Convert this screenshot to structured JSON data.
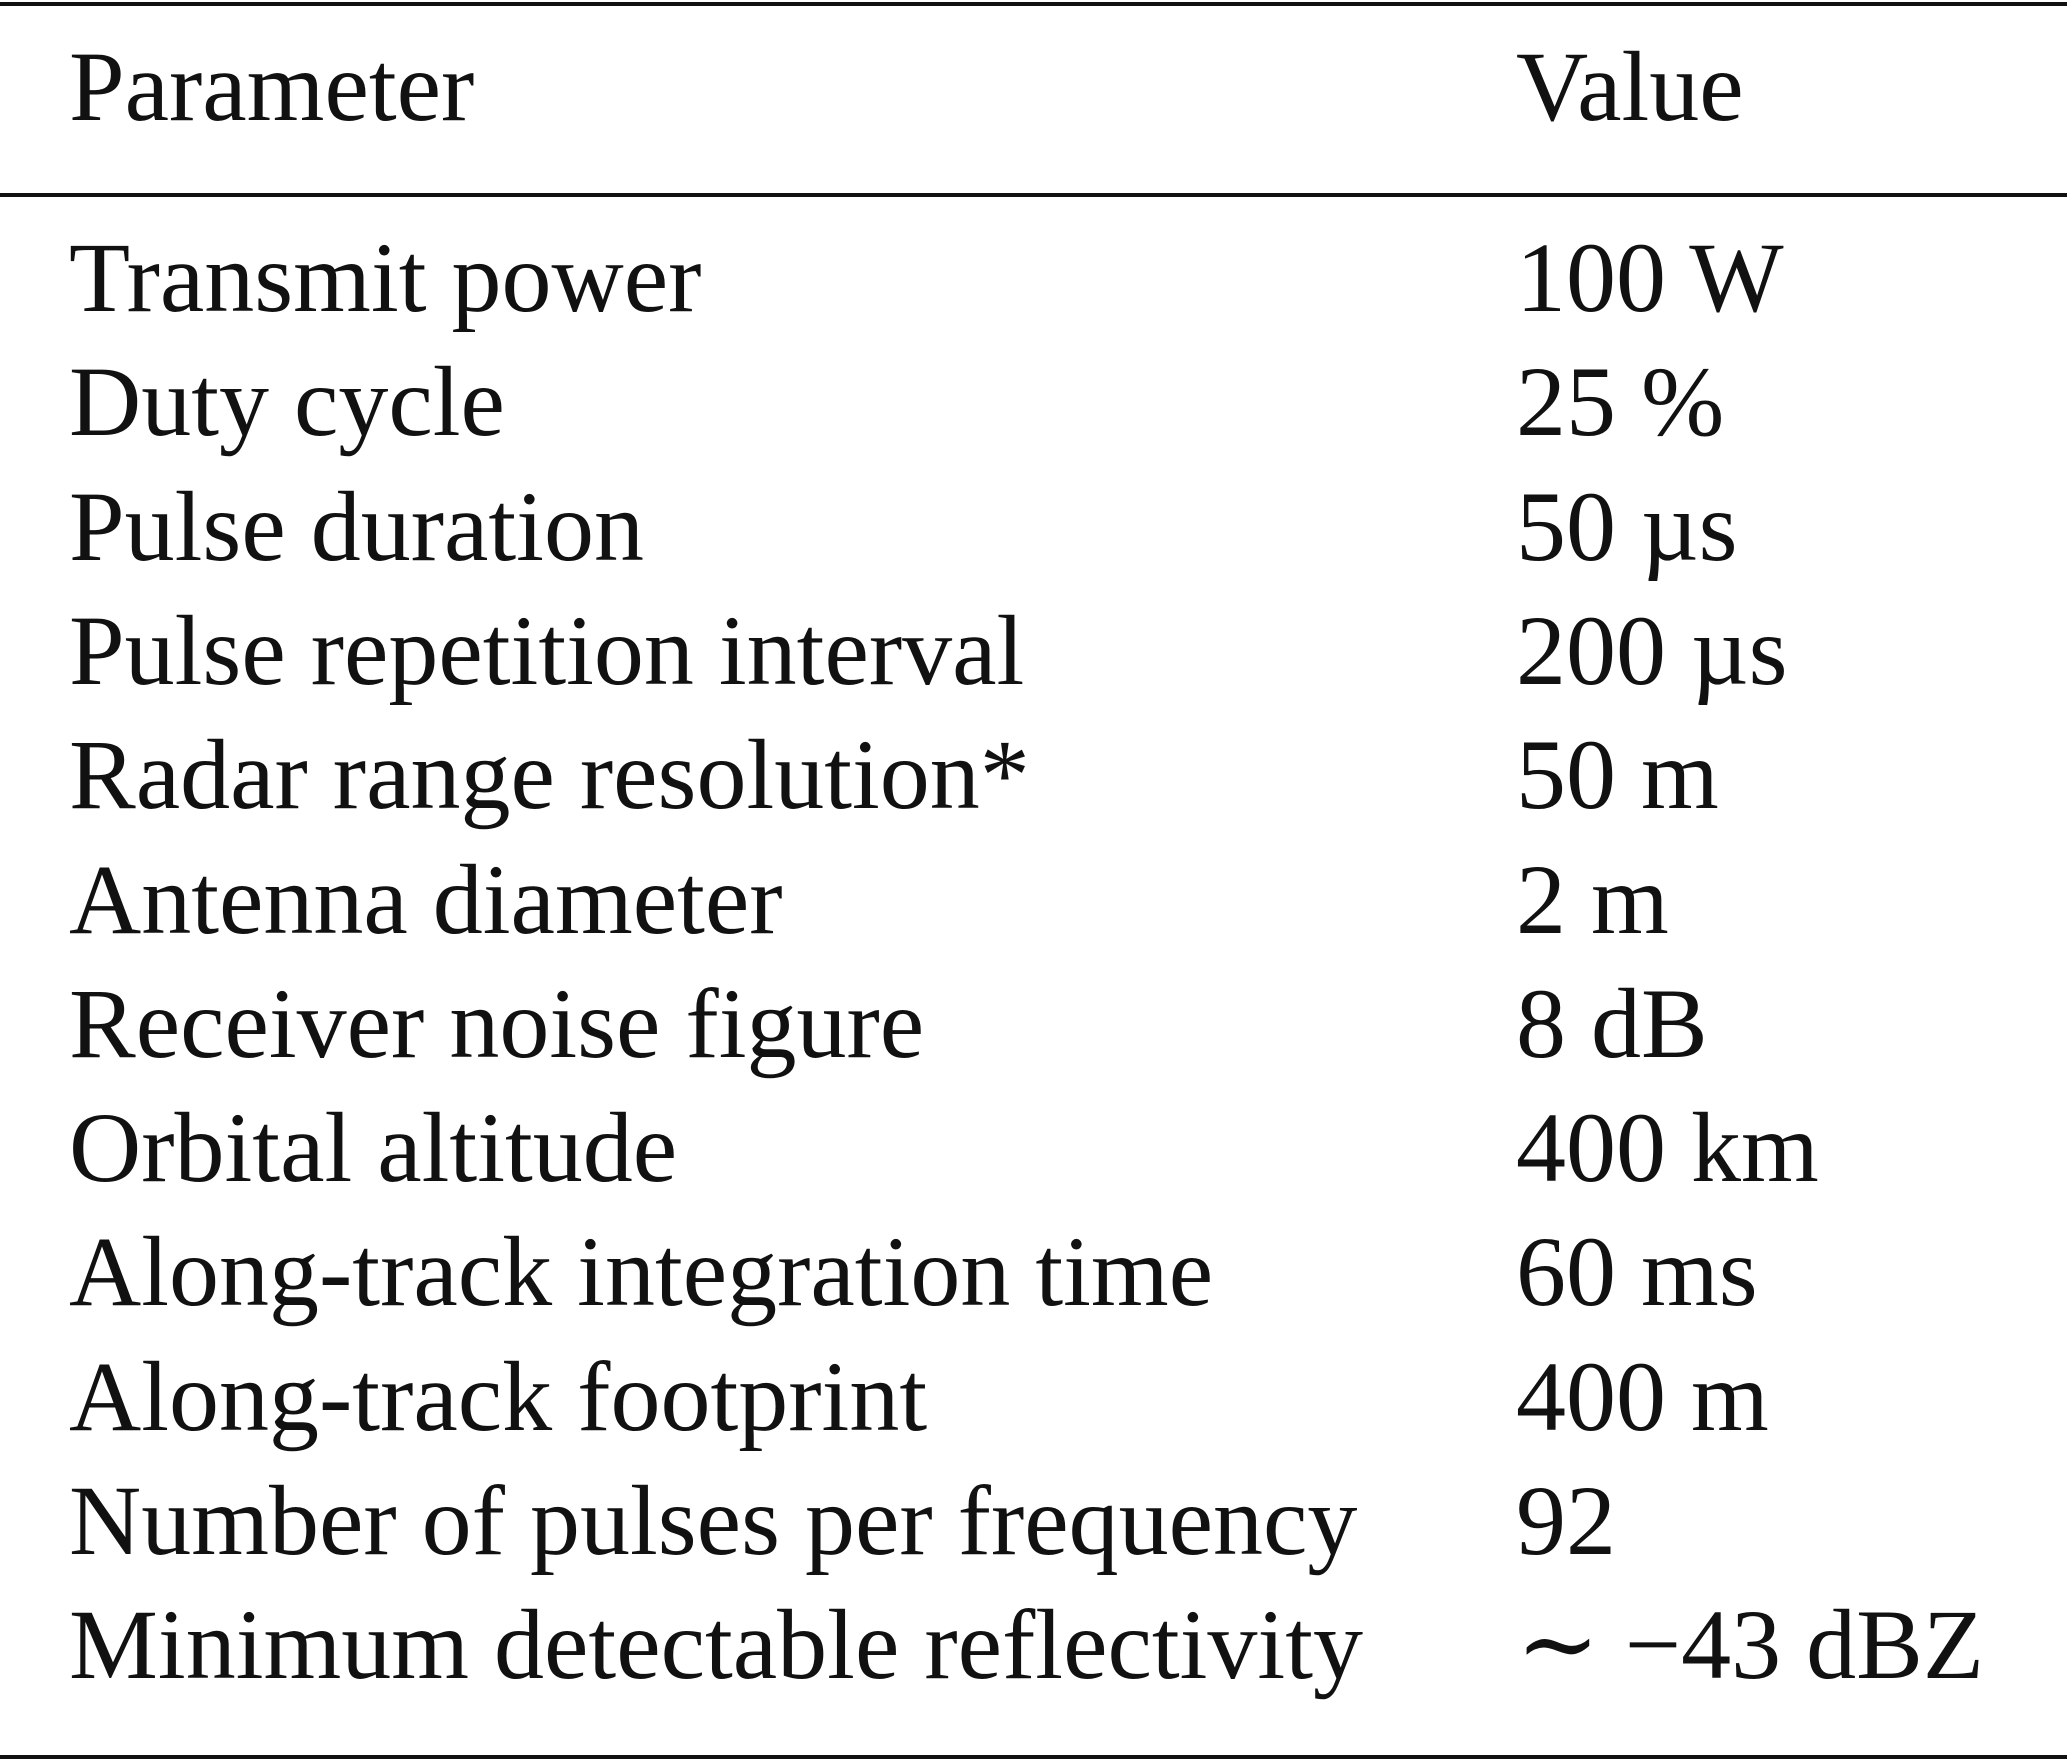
{
  "table": {
    "header": [
      "Parameter",
      "Value"
    ],
    "rows": [
      [
        "Transmit power",
        "100 W"
      ],
      [
        "Duty cycle",
        "25 %"
      ],
      [
        "Pulse duration",
        "50 µs"
      ],
      [
        "Pulse repetition interval",
        "200 µs"
      ],
      [
        "Radar range resolution*",
        "50 m"
      ],
      [
        "Antenna diameter",
        "2 m"
      ],
      [
        "Receiver noise figure",
        "8 dB"
      ],
      [
        "Orbital altitude",
        "400 km"
      ],
      [
        "Along-track integration time",
        "60 ms"
      ],
      [
        "Along-track footprint",
        "400 m"
      ],
      [
        "Number of pulses per frequency",
        "92"
      ],
      [
        "Minimum detectable reflectivity",
        "∼ −43 dBZ"
      ]
    ]
  }
}
